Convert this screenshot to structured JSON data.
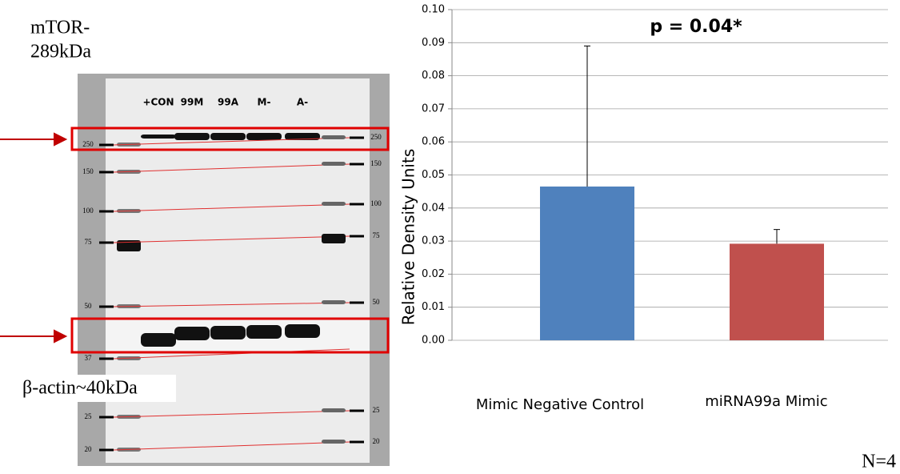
{
  "blot": {
    "title_lines": [
      "mTOR-",
      "289kDa"
    ],
    "lanes": [
      "+CON",
      "99M",
      "99A",
      "M-",
      "A-"
    ],
    "left_markers": [
      250,
      150,
      100,
      75,
      50,
      37,
      25,
      20
    ],
    "right_markers": [
      250,
      150,
      100,
      75,
      50,
      25,
      20
    ],
    "actin_label": "β-actin~40kDa"
  },
  "footnote": "N=4",
  "chart_data": {
    "type": "bar",
    "annotation": "p = 0.04*",
    "y_label": "Relative Density Units",
    "categories": [
      "Mimic Negative Control",
      "miRNA99a Mimic"
    ],
    "values": [
      0.0465,
      0.0292
    ],
    "errors": [
      0.0425,
      0.0043
    ],
    "colors": [
      "#4f81bd",
      "#c0504d"
    ],
    "ylim": [
      0,
      0.1
    ],
    "yticks": [
      {
        "value": 0,
        "label": "0.00"
      },
      0.01,
      0.02,
      0.03,
      0.04,
      0.05,
      0.06,
      0.07,
      0.08,
      0.09,
      {
        "value": 0.1,
        "label": "0.10"
      }
    ],
    "grid": true
  }
}
